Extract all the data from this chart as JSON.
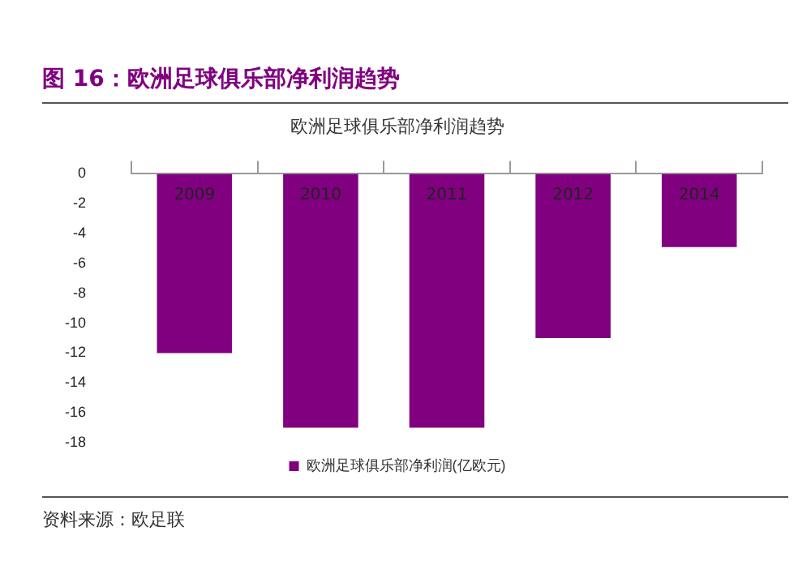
{
  "chart_data": {
    "type": "bar",
    "title": "图 16：欧洲足球俱乐部净利润趋势",
    "subtitle": "欧洲足球俱乐部净利润趋势",
    "categories": [
      "2009",
      "2010",
      "2011",
      "2012",
      "2014"
    ],
    "series": [
      {
        "name": "欧洲足球俱乐部净利润(亿欧元)",
        "color": "#800080",
        "values": [
          -12,
          -17,
          -17,
          -11,
          -4.9
        ]
      }
    ],
    "ylim": [
      -18,
      0
    ],
    "yticks": [
      0,
      -2,
      -4,
      -6,
      -8,
      -10,
      -12,
      -14,
      -16,
      -18
    ],
    "grid": false,
    "legend": "bottom",
    "annotations": [
      "资料来源：欧足联"
    ]
  }
}
